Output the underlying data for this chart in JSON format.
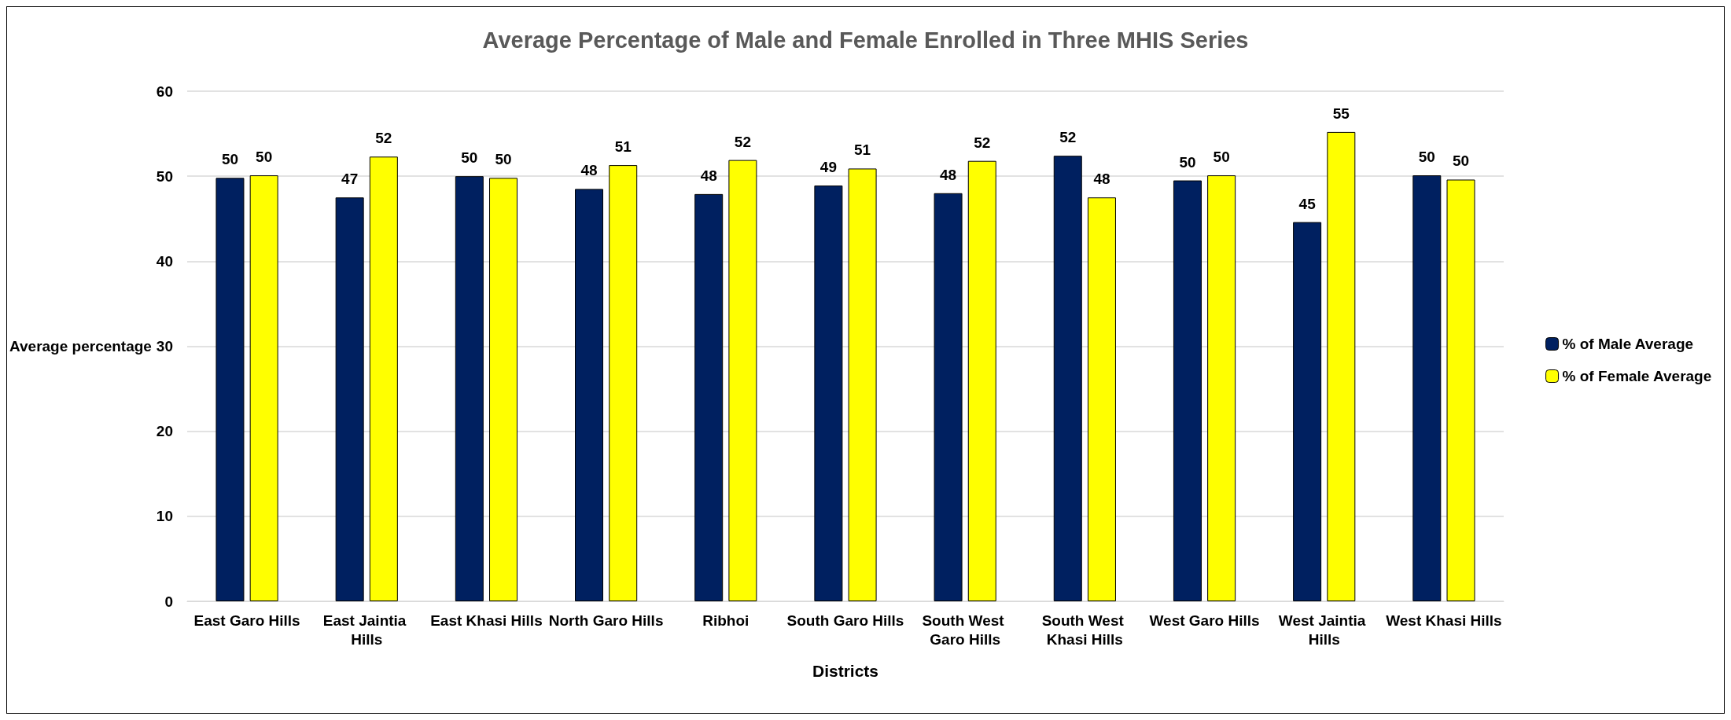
{
  "chart_data": {
    "type": "bar",
    "title": "Average Percentage of Male and Female Enrolled in Three MHIS Series",
    "xlabel": "Districts",
    "ylabel": "Average percentage",
    "categories": [
      "East Garo Hills",
      "East Jaintia Hills",
      "East Khasi Hills",
      "North Garo Hills",
      "Ribhoi",
      "South Garo Hills",
      "South West Garo Hills",
      "South West Khasi Hills",
      "West Garo Hills",
      "West Jaintia Hills",
      "West Khasi Hills"
    ],
    "series": [
      {
        "name": "% of Male Average",
        "color": "#002060",
        "values": [
          49.8,
          47.5,
          50.0,
          48.5,
          47.9,
          48.9,
          48.0,
          52.4,
          49.5,
          44.6,
          50.1
        ],
        "value_labels": [
          "50",
          "47",
          "50",
          "48",
          "48",
          "49",
          "48",
          "52",
          "50",
          "45",
          "50"
        ]
      },
      {
        "name": "% of Female Average",
        "color": "#ffff00",
        "values": [
          50.1,
          52.3,
          49.8,
          51.3,
          51.9,
          50.9,
          51.8,
          47.5,
          50.1,
          55.2,
          49.6
        ],
        "value_labels": [
          "50",
          "52",
          "50",
          "51",
          "52",
          "51",
          "52",
          "48",
          "50",
          "55",
          "50"
        ]
      }
    ],
    "ylim": [
      0,
      60
    ],
    "yticks": [
      0,
      10,
      20,
      30,
      40,
      50,
      60
    ],
    "grid": "y",
    "legend": "right"
  }
}
